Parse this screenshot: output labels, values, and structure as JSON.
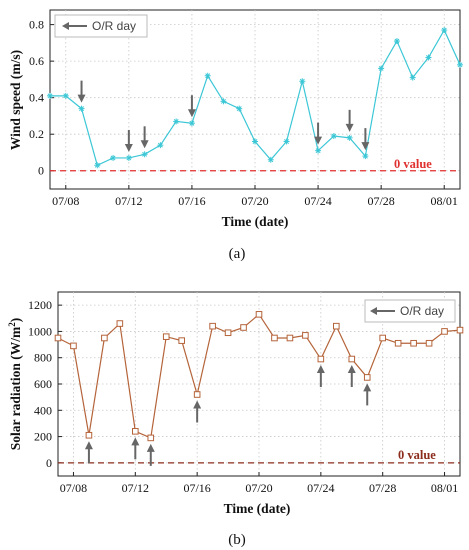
{
  "chart_data": [
    {
      "type": "line",
      "panel_label": "(a)",
      "xlabel": "Time (date)",
      "ylabel": "Wind speed (m/s)",
      "xtick_labels": [
        "07/08",
        "07/12",
        "07/16",
        "07/20",
        "07/24",
        "07/28",
        "08/01"
      ],
      "xlim": [
        "07/07",
        "08/02"
      ],
      "ylim": [
        -0.1,
        0.88
      ],
      "yticks": [
        0,
        0.2,
        0.4,
        0.6,
        0.8
      ],
      "ytick_labels": [
        "0",
        "0.2",
        "0.4",
        "0.6",
        "0.8"
      ],
      "grid": true,
      "series_color": "#3cc7d6",
      "marker": "asterisk",
      "x": [
        "07/07",
        "07/08",
        "07/09",
        "07/10",
        "07/11",
        "07/12",
        "07/13",
        "07/14",
        "07/15",
        "07/16",
        "07/17",
        "07/18",
        "07/19",
        "07/20",
        "07/21",
        "07/22",
        "07/23",
        "07/24",
        "07/25",
        "07/26",
        "07/27",
        "07/28",
        "07/29",
        "07/30",
        "07/31",
        "08/01",
        "08/02"
      ],
      "values": [
        0.41,
        0.41,
        0.34,
        0.03,
        0.07,
        0.07,
        0.09,
        0.14,
        0.27,
        0.26,
        0.52,
        0.38,
        0.34,
        0.16,
        0.06,
        0.16,
        0.49,
        0.11,
        0.19,
        0.18,
        0.08,
        0.56,
        0.71,
        0.51,
        0.62,
        0.77,
        0.58
      ],
      "legend": {
        "label": "O/R day",
        "position": "top-left"
      },
      "or_days": [
        "07/09",
        "07/12",
        "07/13",
        "07/16",
        "07/24",
        "07/26",
        "07/27"
      ],
      "arrow_direction": "down",
      "reference_line": {
        "value": 0,
        "label": "0 value",
        "color": "#e03030"
      }
    },
    {
      "type": "line",
      "panel_label": "(b)",
      "xlabel": "Time (date)",
      "ylabel": "Solar radiation (W/m",
      "ylabel_sup": "2",
      "ylabel_end": ")",
      "xtick_labels": [
        "07/08",
        "07/12",
        "07/16",
        "07/20",
        "07/24",
        "07/28",
        "08/01"
      ],
      "xlim": [
        "07/07",
        "08/02"
      ],
      "ylim": [
        -100,
        1300
      ],
      "yticks": [
        0,
        200,
        400,
        600,
        800,
        1000,
        1200
      ],
      "ytick_labels": [
        "0",
        "200",
        "400",
        "600",
        "800",
        "1000",
        "1200"
      ],
      "grid": true,
      "series_color": "#b5643a",
      "marker": "square",
      "x": [
        "07/07",
        "07/08",
        "07/09",
        "07/10",
        "07/11",
        "07/12",
        "07/13",
        "07/14",
        "07/15",
        "07/16",
        "07/17",
        "07/18",
        "07/19",
        "07/20",
        "07/21",
        "07/22",
        "07/23",
        "07/24",
        "07/25",
        "07/26",
        "07/27",
        "07/28",
        "07/29",
        "07/30",
        "07/31",
        "08/01",
        "08/02"
      ],
      "values": [
        950,
        890,
        210,
        950,
        1060,
        240,
        190,
        960,
        930,
        520,
        1040,
        990,
        1030,
        1130,
        950,
        950,
        970,
        790,
        1040,
        790,
        650,
        950,
        910,
        910,
        910,
        1000,
        1010
      ],
      "legend": {
        "label": "O/R day",
        "position": "top-right"
      },
      "or_days": [
        "07/09",
        "07/12",
        "07/13",
        "07/16",
        "07/24",
        "07/26",
        "07/27"
      ],
      "arrow_direction": "up",
      "reference_line": {
        "value": 0,
        "label": "0 value",
        "color": "#8b2c1c"
      }
    }
  ]
}
